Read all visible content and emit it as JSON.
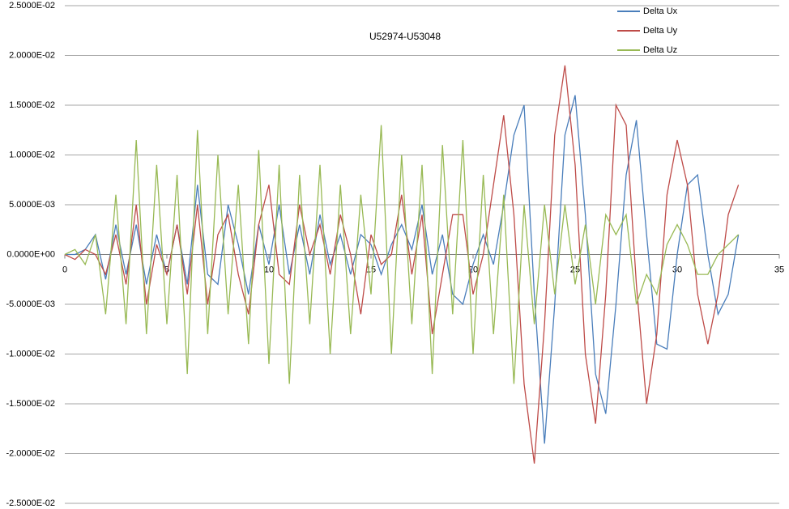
{
  "chart_data": {
    "type": "line",
    "title": "U52974-U53048",
    "x": [
      0,
      0.5,
      1,
      1.5,
      2,
      2.5,
      3,
      3.5,
      4,
      4.5,
      5,
      5.5,
      6,
      6.5,
      7,
      7.5,
      8,
      8.5,
      9,
      9.5,
      10,
      10.5,
      11,
      11.5,
      12,
      12.5,
      13,
      13.5,
      14,
      14.5,
      15,
      15.5,
      16,
      16.5,
      17,
      17.5,
      18,
      18.5,
      19,
      19.5,
      20,
      20.5,
      21,
      21.5,
      22,
      22.5,
      23,
      23.5,
      24,
      24.5,
      25,
      25.5,
      26,
      26.5,
      27,
      27.5,
      28,
      28.5,
      29,
      29.5,
      30,
      30.5,
      31,
      31.5,
      32,
      32.5,
      33
    ],
    "series": [
      {
        "name": "Delta Ux",
        "color": "#4a7ebb",
        "values": [
          0,
          0,
          0.0005,
          0.002,
          -0.0025,
          0.003,
          -0.002,
          0.003,
          -0.003,
          0.002,
          -0.002,
          0.003,
          -0.003,
          0.007,
          -0.002,
          -0.003,
          0.005,
          0.001,
          -0.004,
          0.003,
          -0.001,
          0.005,
          -0.002,
          0.003,
          -0.002,
          0.004,
          -0.001,
          0.002,
          -0.002,
          0.002,
          0.001,
          -0.002,
          0.001,
          0.003,
          0.0005,
          0.005,
          -0.002,
          0.002,
          -0.004,
          -0.005,
          -0.001,
          0.002,
          -0.001,
          0.005,
          0.012,
          0.015,
          -0.004,
          -0.019,
          -0.005,
          0.012,
          0.016,
          0.004,
          -0.012,
          -0.016,
          -0.005,
          0.008,
          0.0135,
          0.002,
          -0.009,
          -0.0095,
          0,
          0.007,
          0.008,
          0,
          -0.006,
          -0.004,
          0.002
        ]
      },
      {
        "name": "Delta Uy",
        "color": "#be4b48",
        "values": [
          0,
          -0.0005,
          0.0005,
          0,
          -0.002,
          0.002,
          -0.003,
          0.005,
          -0.005,
          0.001,
          -0.002,
          0.003,
          -0.004,
          0.005,
          -0.005,
          0.002,
          0.004,
          -0.002,
          -0.006,
          0.003,
          0.007,
          -0.002,
          -0.003,
          0.005,
          0,
          0.003,
          -0.002,
          0.004,
          0,
          -0.006,
          0.002,
          -0.001,
          0,
          0.006,
          -0.002,
          0.004,
          -0.008,
          -0.002,
          0.004,
          0.004,
          -0.004,
          0,
          0.007,
          0.014,
          0.004,
          -0.013,
          -0.021,
          -0.007,
          0.012,
          0.019,
          0.009,
          -0.01,
          -0.017,
          -0.004,
          0.015,
          0.013,
          -0.003,
          -0.015,
          -0.008,
          0.006,
          0.0115,
          0.007,
          -0.004,
          -0.009,
          -0.004,
          0.004,
          0.007
        ]
      },
      {
        "name": "Delta Uz",
        "color": "#98b954",
        "values": [
          0,
          0.0005,
          -0.001,
          0.002,
          -0.006,
          0.006,
          -0.007,
          0.0115,
          -0.008,
          0.009,
          -0.007,
          0.008,
          -0.012,
          0.0125,
          -0.008,
          0.01,
          -0.006,
          0.007,
          -0.009,
          0.0105,
          -0.011,
          0.009,
          -0.013,
          0.008,
          -0.007,
          0.009,
          -0.01,
          0.007,
          -0.008,
          0.006,
          -0.004,
          0.013,
          -0.01,
          0.01,
          -0.007,
          0.009,
          -0.012,
          0.011,
          -0.006,
          0.0115,
          -0.01,
          0.008,
          -0.008,
          0.006,
          -0.013,
          0.005,
          -0.007,
          0.005,
          -0.004,
          0.005,
          -0.003,
          0.003,
          -0.005,
          0.004,
          0.002,
          0.004,
          -0.005,
          -0.002,
          -0.004,
          0.001,
          0.003,
          0.001,
          -0.002,
          -0.002,
          0,
          0.001,
          0.002
        ]
      }
    ],
    "xlim": [
      0,
      35
    ],
    "xticks": [
      0,
      5,
      10,
      15,
      20,
      25,
      30,
      35
    ],
    "ylim": [
      -0.025,
      0.025
    ],
    "yticks": [
      {
        "value": 0.025,
        "label": "2.5000E-02"
      },
      {
        "value": 0.02,
        "label": "2.0000E-02"
      },
      {
        "value": 0.015,
        "label": "1.5000E-02"
      },
      {
        "value": 0.01,
        "label": "1.0000E-02"
      },
      {
        "value": 0.005,
        "label": "5.0000E-03"
      },
      {
        "value": 0,
        "label": "0.0000E+00"
      },
      {
        "value": -0.005,
        "label": "-5.0000E-03"
      },
      {
        "value": -0.01,
        "label": "-1.0000E-02"
      },
      {
        "value": -0.015,
        "label": "-1.5000E-02"
      },
      {
        "value": -0.02,
        "label": "-2.0000E-02"
      },
      {
        "value": -0.025,
        "label": "-2.5000E-02"
      }
    ],
    "grid": true,
    "legend": "top-right"
  }
}
